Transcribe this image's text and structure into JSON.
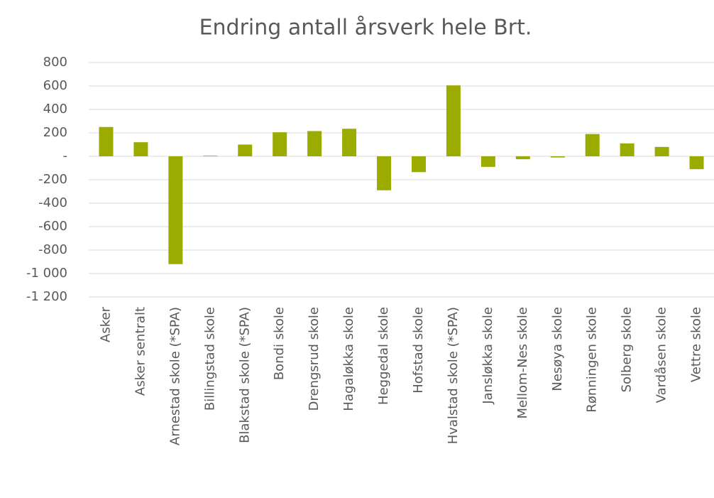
{
  "chart_data": {
    "type": "bar",
    "title": "Endring antall årsverk hele Brt.",
    "categories": [
      "Asker",
      "Asker sentralt",
      "Arnestad skole (*SPA)",
      "Billingstad skole",
      "Blakstad skole (*SPA)",
      "Bondi skole",
      "Drengsrud skole",
      "Hagaløkka skole",
      "Heggedal skole",
      "Hofstad skole",
      "Hvalstad skole (*SPA)",
      "Jansløkka skole",
      "Mellom-Nes skole",
      "Nesøya skole",
      "Rønningen skole",
      "Solberg skole",
      "Vardåsen skole",
      "Vettre skole"
    ],
    "values": [
      250,
      120,
      -920,
      5,
      100,
      205,
      215,
      235,
      -290,
      -135,
      605,
      -90,
      -25,
      -10,
      190,
      110,
      80,
      -110
    ],
    "color": "#9bab00",
    "ylim": [
      -1200,
      800
    ],
    "yticks": [
      800,
      600,
      400,
      200,
      {
        "value": 0,
        "label": "-"
      },
      -200,
      -400,
      -600,
      -800,
      {
        "value": -1000,
        "label": "-1 000"
      },
      {
        "value": -1200,
        "label": "-1 200"
      }
    ],
    "grid": true
  }
}
